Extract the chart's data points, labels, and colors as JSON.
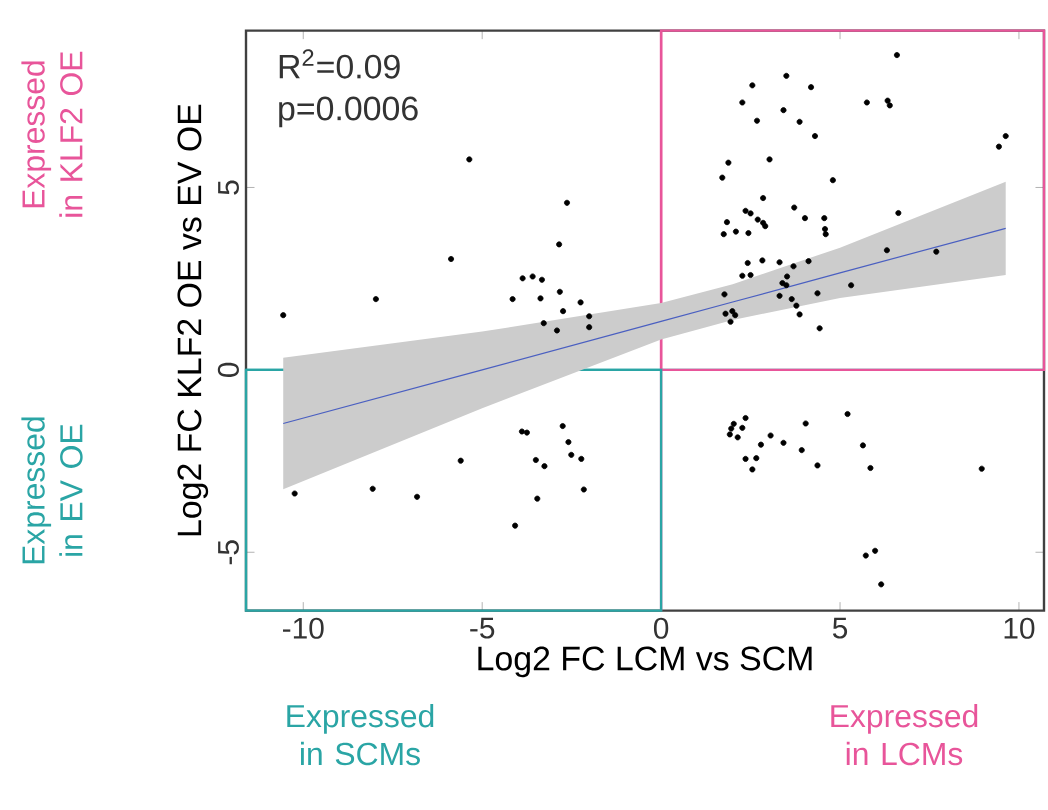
{
  "chart_data": {
    "type": "scatter",
    "xlabel": "Log2 FC LCM vs SCM",
    "ylabel": "Log2 FC KLF2 OE vs EV OE",
    "xlim": [
      -11.6,
      10.7
    ],
    "ylim": [
      -6.6,
      9.3
    ],
    "xticks": [
      -10,
      -5,
      0,
      5,
      10
    ],
    "yticks": [
      -5,
      0,
      5
    ],
    "marker": "circle",
    "grid": false,
    "series": [
      {
        "color": "#000000",
        "x": [
          -5.36,
          -2.63,
          -2.85,
          -5.87,
          -7.97,
          -10.56,
          -3.87,
          -3.59,
          -3.33,
          -4.15,
          -3.37,
          -2.83,
          -2.25,
          -2.74,
          -2.01,
          -2.01,
          -3.28,
          -2.91,
          -3.89,
          -3.75,
          -2.75,
          -2.59,
          -2.51,
          -2.23,
          -5.6,
          -3.5,
          -3.26,
          -2.16,
          -3.46,
          -4.08,
          -6.82,
          -8.06,
          -10.24,
          6.59,
          3.5,
          2.55,
          4.19,
          2.27,
          5.75,
          6.33,
          6.39,
          3.42,
          2.68,
          3.87,
          4.3,
          9.63,
          9.44,
          3.03,
          1.88,
          1.71,
          4.8,
          2.85,
          3.72,
          2.36,
          2.5,
          6.63,
          1.84,
          4.02,
          4.56,
          2.7,
          2.85,
          2.91,
          2.09,
          1.75,
          2.44,
          4.58,
          4.6,
          6.31,
          7.69,
          2.83,
          2.42,
          3.31,
          4.12,
          3.7,
          2.27,
          2.5,
          3.52,
          3.39,
          3.5,
          5.31,
          1.77,
          4.37,
          3.31,
          3.65,
          3.78,
          1.8,
          1.99,
          2.07,
          3.87,
          1.94,
          4.43,
          5.21,
          2.36,
          2.03,
          2.27,
          1.96,
          4.04,
          1.92,
          2.14,
          3.06,
          2.79,
          3.42,
          3.93,
          5.64,
          2.36,
          2.66,
          2.55,
          4.37,
          5.85,
          8.96,
          5.98,
          5.72,
          6.15
        ],
        "values": [
          5.77,
          4.58,
          3.44,
          3.04,
          1.94,
          1.5,
          2.51,
          2.56,
          2.47,
          1.94,
          1.96,
          2.14,
          1.85,
          1.61,
          1.47,
          1.17,
          1.28,
          1.08,
          -1.69,
          -1.72,
          -1.54,
          -1.98,
          -2.33,
          -2.44,
          -2.49,
          -2.47,
          -2.64,
          -3.28,
          -3.53,
          -4.27,
          -3.48,
          -3.26,
          -3.39,
          8.63,
          8.06,
          7.8,
          7.75,
          7.33,
          7.33,
          7.38,
          7.25,
          7.12,
          6.83,
          6.8,
          6.41,
          6.41,
          6.12,
          5.77,
          5.68,
          5.27,
          5.2,
          4.71,
          4.45,
          4.36,
          4.29,
          4.3,
          4.05,
          4.16,
          4.16,
          4.12,
          4.03,
          3.94,
          3.79,
          3.72,
          3.75,
          3.86,
          3.72,
          3.28,
          3.24,
          3.0,
          2.93,
          2.95,
          2.98,
          2.84,
          2.58,
          2.6,
          2.56,
          2.38,
          2.32,
          2.32,
          2.07,
          2.1,
          2.03,
          1.94,
          1.76,
          1.54,
          1.61,
          1.5,
          1.52,
          1.32,
          1.14,
          -1.21,
          -1.32,
          -1.48,
          -1.59,
          -1.61,
          -1.47,
          -1.77,
          -1.85,
          -1.8,
          -2.05,
          -2.0,
          -2.2,
          -2.07,
          -2.44,
          -2.42,
          -2.73,
          -2.62,
          -2.69,
          -2.71,
          -4.96,
          -5.09,
          -5.88
        ]
      },
      {
        "type": "line",
        "color": "#4a5fc1",
        "line_style": "solid",
        "marker": "none",
        "x": [
          -10.56,
          -5,
          0,
          2,
          5,
          9.63
        ],
        "values": [
          -1.47,
          0.0,
          1.33,
          1.86,
          2.66,
          3.88
        ],
        "lower": [
          -3.27,
          -1.05,
          0.83,
          1.37,
          1.97,
          2.6
        ],
        "upper": [
          0.33,
          1.05,
          1.83,
          2.35,
          3.35,
          5.16
        ]
      }
    ],
    "ref_lines": [
      {
        "axis": "x",
        "value": 0,
        "color": "#e8559a"
      },
      {
        "axis": "y",
        "value": 0,
        "color": "#2aa5a5"
      }
    ],
    "annotations": [
      "R$^{2}$=0.09",
      "p=0.0006",
      "Expressed in KLF2 OE",
      "Expressed in EV OE",
      "Expressed in SCMs",
      "Expressed in LCMs"
    ]
  }
}
